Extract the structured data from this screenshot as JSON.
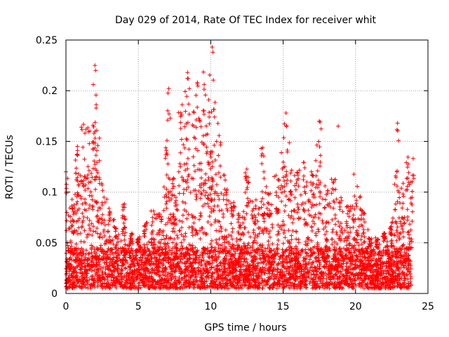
{
  "colors": {
    "marker": "#ff0000",
    "grid": "#a0a0a0",
    "axis": "#000000",
    "background": "#ffffff"
  },
  "chart_data": {
    "type": "scatter",
    "title": "Day 029 of 2014, Rate Of TEC Index for receiver whit",
    "xlabel": "GPS time / hours",
    "ylabel": "ROTI / TECUs",
    "xlim": [
      0,
      25
    ],
    "ylim": [
      0,
      0.25
    ],
    "grid": true,
    "marker": "+",
    "x_ticks": [
      0,
      5,
      10,
      15,
      20,
      25
    ],
    "x_tick_labels": [
      "0",
      "5",
      "10",
      "15",
      "20",
      "25"
    ],
    "y_ticks": [
      0,
      0.05,
      0.1,
      0.15,
      0.2,
      0.25
    ],
    "y_tick_labels": [
      "0",
      "0.05",
      "0.1",
      "0.15",
      "0.2",
      "0.25"
    ],
    "x_data_range": [
      0,
      23.9
    ],
    "background_level": {
      "low": 0.005,
      "high": 0.045
    },
    "envelope": [
      [
        0.0,
        0.12
      ],
      [
        0.5,
        0.1
      ],
      [
        0.8,
        0.16
      ],
      [
        1.2,
        0.17
      ],
      [
        1.6,
        0.165
      ],
      [
        1.9,
        0.18
      ],
      [
        2.0,
        0.225
      ],
      [
        2.2,
        0.19
      ],
      [
        2.5,
        0.11
      ],
      [
        3.0,
        0.09
      ],
      [
        3.5,
        0.065
      ],
      [
        4.0,
        0.09
      ],
      [
        4.5,
        0.06
      ],
      [
        5.0,
        0.055
      ],
      [
        5.5,
        0.07
      ],
      [
        6.0,
        0.085
      ],
      [
        6.5,
        0.08
      ],
      [
        6.9,
        0.145
      ],
      [
        7.1,
        0.2
      ],
      [
        7.4,
        0.11
      ],
      [
        7.9,
        0.18
      ],
      [
        8.2,
        0.2
      ],
      [
        8.4,
        0.22
      ],
      [
        8.8,
        0.19
      ],
      [
        9.1,
        0.21
      ],
      [
        9.3,
        0.2
      ],
      [
        9.6,
        0.22
      ],
      [
        9.8,
        0.225
      ],
      [
        10.1,
        0.245
      ],
      [
        10.3,
        0.19
      ],
      [
        10.6,
        0.17
      ],
      [
        11.0,
        0.12
      ],
      [
        11.5,
        0.09
      ],
      [
        12.0,
        0.08
      ],
      [
        12.5,
        0.13
      ],
      [
        13.0,
        0.09
      ],
      [
        13.6,
        0.15
      ],
      [
        14.0,
        0.1
      ],
      [
        14.6,
        0.13
      ],
      [
        15.0,
        0.155
      ],
      [
        15.2,
        0.18
      ],
      [
        15.5,
        0.15
      ],
      [
        16.0,
        0.13
      ],
      [
        16.5,
        0.13
      ],
      [
        17.0,
        0.13
      ],
      [
        17.5,
        0.17
      ],
      [
        18.0,
        0.11
      ],
      [
        18.5,
        0.115
      ],
      [
        19.0,
        0.095
      ],
      [
        19.5,
        0.09
      ],
      [
        20.0,
        0.12
      ],
      [
        20.5,
        0.085
      ],
      [
        21.0,
        0.055
      ],
      [
        21.5,
        0.055
      ],
      [
        22.0,
        0.06
      ],
      [
        22.5,
        0.075
      ],
      [
        22.9,
        0.17
      ],
      [
        23.2,
        0.11
      ],
      [
        23.6,
        0.135
      ],
      [
        23.9,
        0.14
      ]
    ],
    "notable_points": [
      {
        "x": 2.0,
        "y": 0.225
      },
      {
        "x": 2.05,
        "y": 0.22
      },
      {
        "x": 7.1,
        "y": 0.202
      },
      {
        "x": 8.4,
        "y": 0.218
      },
      {
        "x": 10.1,
        "y": 0.243
      },
      {
        "x": 10.15,
        "y": 0.238
      },
      {
        "x": 15.2,
        "y": 0.178
      },
      {
        "x": 17.5,
        "y": 0.17
      },
      {
        "x": 18.8,
        "y": 0.165
      },
      {
        "x": 22.9,
        "y": 0.168
      },
      {
        "x": 0.0,
        "y": 0.12
      }
    ],
    "series": [
      {
        "name": "ROTI",
        "color": "#ff0000"
      }
    ]
  }
}
